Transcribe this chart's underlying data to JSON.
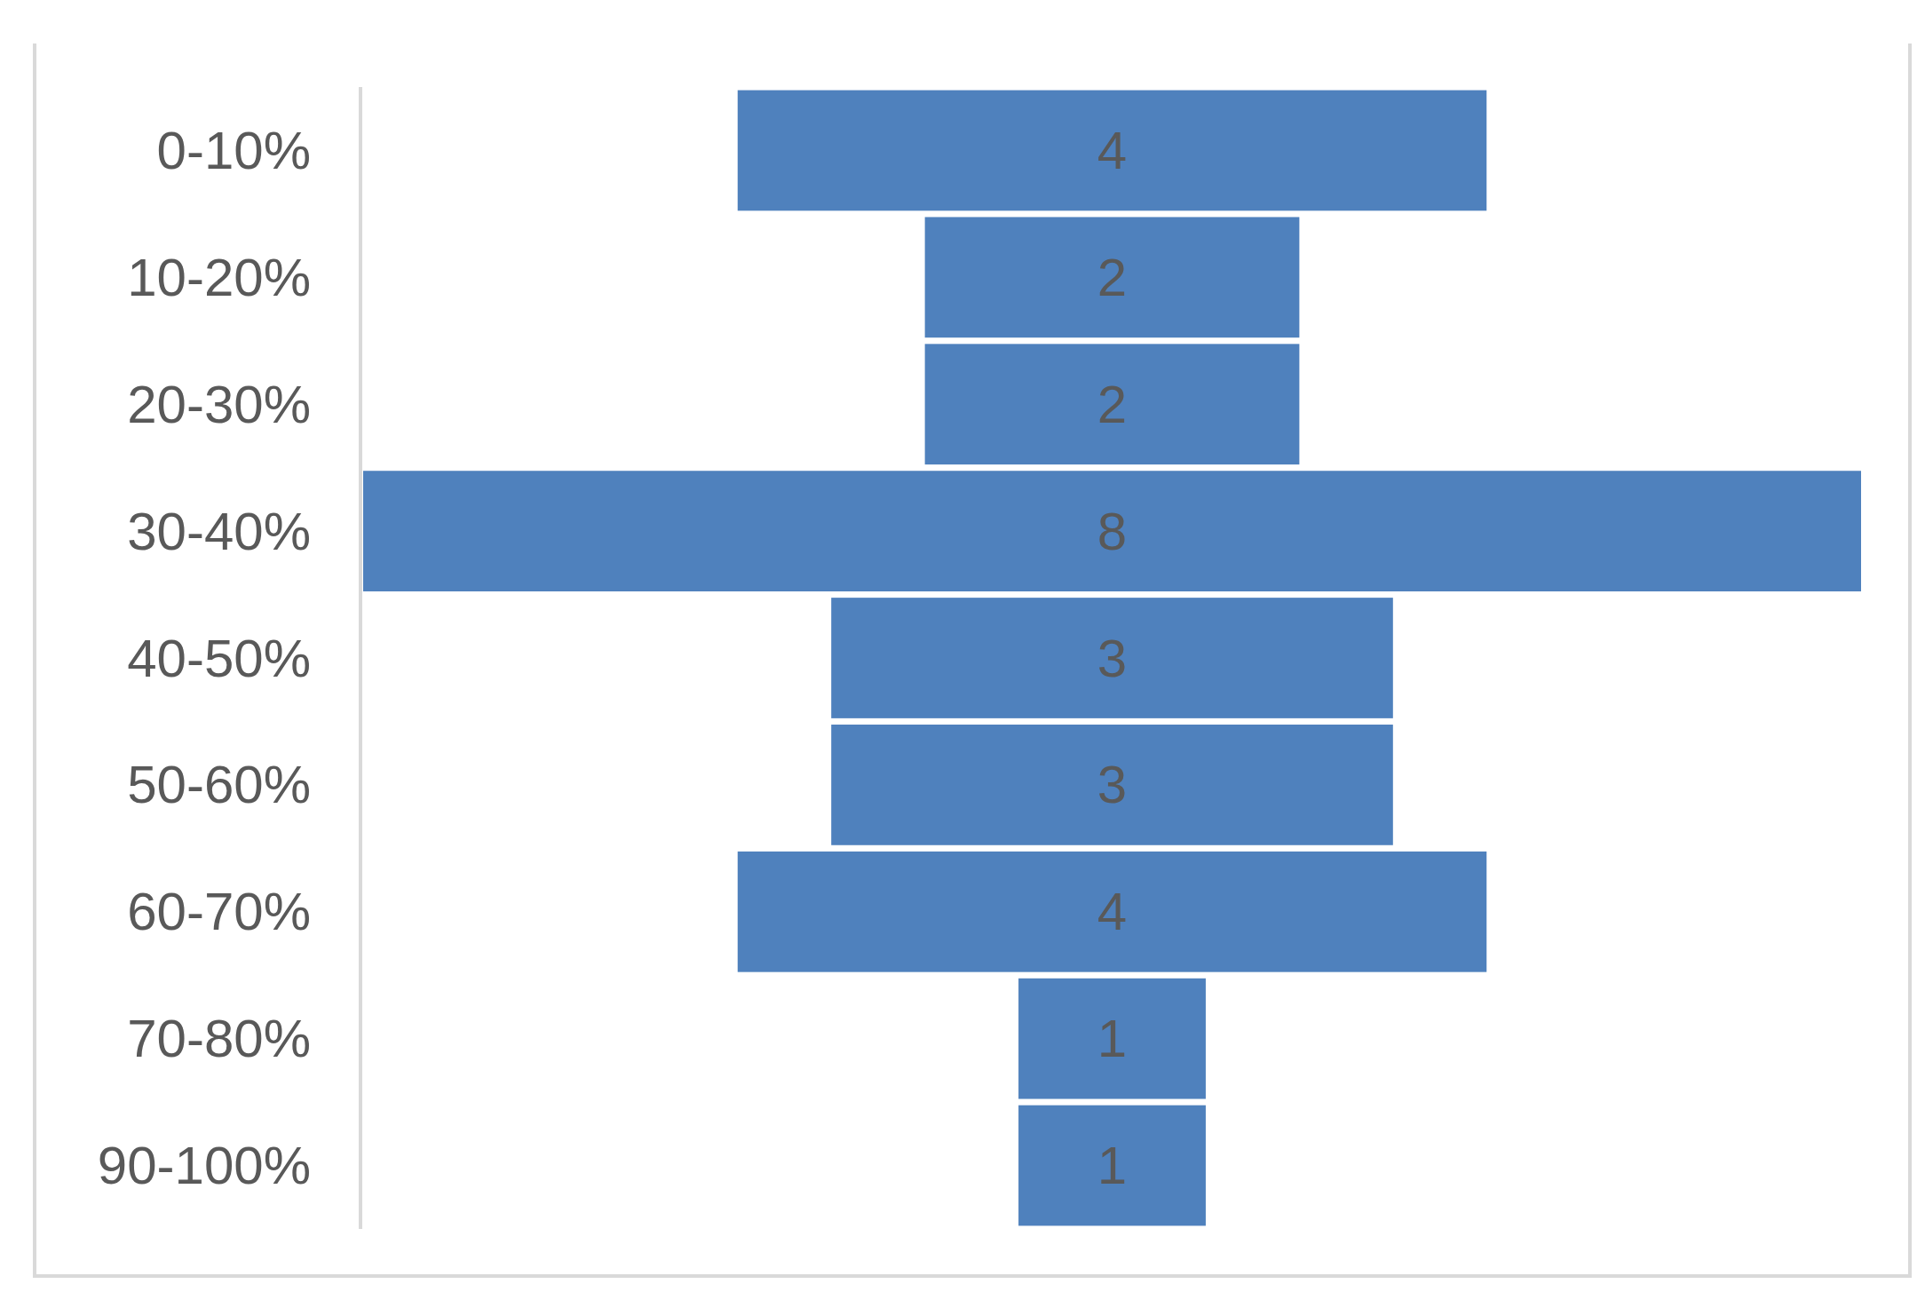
{
  "chart_data": {
    "type": "other",
    "categories": [
      "0-10%",
      "10-20%",
      "20-30%",
      "30-40%",
      "40-50%",
      "50-60%",
      "60-70%",
      "70-80%",
      "90-100%"
    ],
    "values": [
      4,
      2,
      2,
      8,
      3,
      3,
      4,
      1,
      1
    ],
    "color": "#4f81bd",
    "data_labels": true
  }
}
